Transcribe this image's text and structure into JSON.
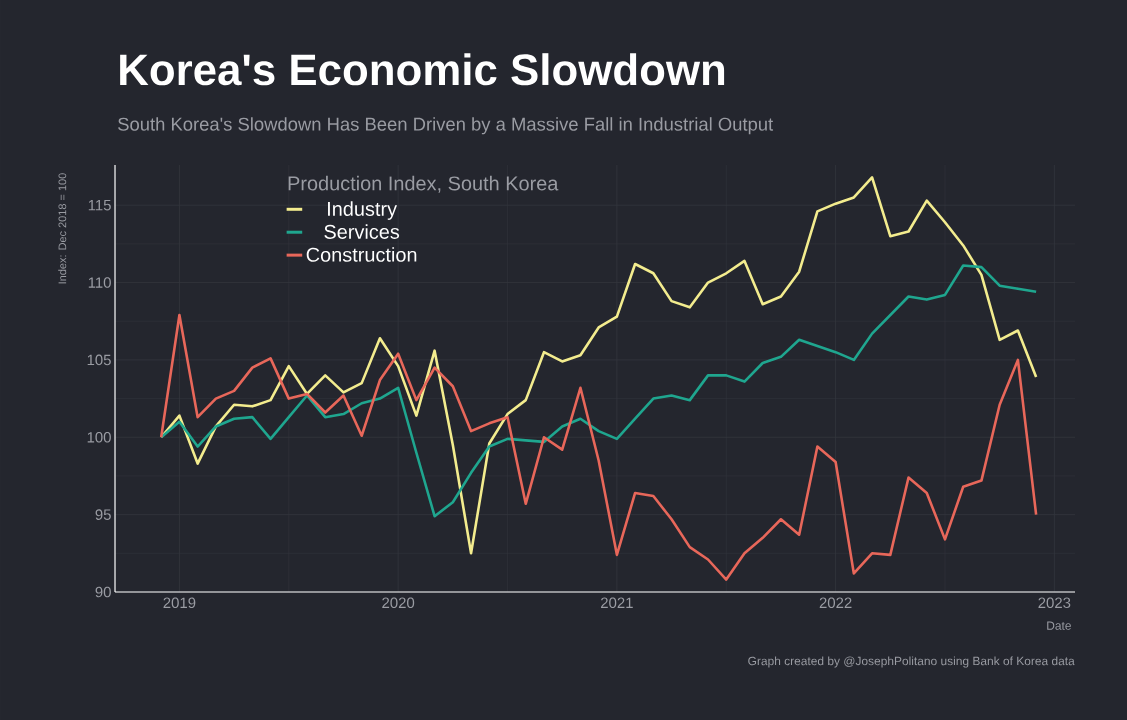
{
  "chart_data": {
    "type": "line",
    "title": "Korea's Economic Slowdown",
    "subtitle": "South Korea's Slowdown Has Been Driven by a Massive Fall in Industrial Output",
    "xlabel": "Date",
    "ylabel": "Index: Dec 2018 = 100",
    "legend_title": "Production Index, South Korea",
    "annotations": [
      "Graph created by @JosephPolitano using Bank of Korea data"
    ],
    "x": [
      "2018-12",
      "2019-01",
      "2019-02",
      "2019-03",
      "2019-04",
      "2019-05",
      "2019-06",
      "2019-07",
      "2019-08",
      "2019-09",
      "2019-10",
      "2019-11",
      "2019-12",
      "2020-01",
      "2020-02",
      "2020-03",
      "2020-04",
      "2020-05",
      "2020-06",
      "2020-07",
      "2020-08",
      "2020-09",
      "2020-10",
      "2020-11",
      "2020-12",
      "2021-01",
      "2021-02",
      "2021-03",
      "2021-04",
      "2021-05",
      "2021-06",
      "2021-07",
      "2021-08",
      "2021-09",
      "2021-10",
      "2021-11",
      "2021-12",
      "2022-01",
      "2022-02",
      "2022-03",
      "2022-04",
      "2022-05",
      "2022-06",
      "2022-07",
      "2022-08",
      "2022-09",
      "2022-10",
      "2022-11",
      "2022-12"
    ],
    "series": [
      {
        "name": "Industry",
        "color": "#f3ec8e",
        "values": [
          100.0,
          101.4,
          98.3,
          100.7,
          102.1,
          102.0,
          102.4,
          104.6,
          102.8,
          104.0,
          102.9,
          103.5,
          106.4,
          104.6,
          101.4,
          105.6,
          99.5,
          92.5,
          99.6,
          101.5,
          102.4,
          105.5,
          104.9,
          105.3,
          107.1,
          107.8,
          111.2,
          110.6,
          108.8,
          108.4,
          110.0,
          110.6,
          111.4,
          108.6,
          109.1,
          110.7,
          114.6,
          115.1,
          115.5,
          116.8,
          113.0,
          113.3,
          115.3,
          113.9,
          112.4,
          110.5,
          106.3,
          106.9,
          103.9
        ]
      },
      {
        "name": "Services",
        "color": "#1fa68f",
        "values": [
          100.0,
          101.0,
          99.4,
          100.7,
          101.2,
          101.3,
          99.9,
          101.3,
          102.7,
          101.3,
          101.5,
          102.2,
          102.5,
          103.2,
          99.0,
          94.9,
          95.8,
          97.7,
          99.4,
          99.9,
          99.8,
          99.7,
          100.7,
          101.2,
          100.4,
          99.9,
          101.2,
          102.5,
          102.7,
          102.4,
          104.0,
          104.0,
          103.6,
          104.8,
          105.2,
          106.3,
          105.9,
          105.5,
          105.0,
          106.7,
          107.9,
          109.1,
          108.9,
          109.2,
          111.1,
          111.0,
          109.8,
          109.6,
          109.4
        ]
      },
      {
        "name": "Construction",
        "color": "#e8675a",
        "values": [
          100.0,
          107.9,
          101.3,
          102.5,
          103.0,
          104.5,
          105.1,
          102.5,
          102.8,
          101.6,
          102.7,
          100.1,
          103.7,
          105.4,
          102.4,
          104.5,
          103.3,
          100.4,
          100.9,
          101.3,
          95.7,
          100.0,
          99.2,
          103.2,
          98.5,
          92.4,
          96.4,
          96.2,
          94.7,
          92.9,
          92.1,
          90.8,
          92.5,
          93.5,
          94.7,
          93.7,
          99.4,
          98.4,
          91.2,
          92.5,
          92.4,
          97.4,
          96.4,
          93.4,
          96.8,
          97.2,
          102.1,
          105.0,
          95.0
        ]
      }
    ],
    "xlim": [
      "2018-09-15",
      "2023-02-05"
    ],
    "xticks": [
      {
        "value": "2019-01",
        "label": "2019"
      },
      {
        "value": "2020-01",
        "label": "2020"
      },
      {
        "value": "2021-01",
        "label": "2021"
      },
      {
        "value": "2022-01",
        "label": "2022"
      },
      {
        "value": "2023-01",
        "label": "2023"
      }
    ],
    "ylim": [
      90,
      117.6
    ],
    "yticks": [
      90,
      95,
      100,
      105,
      110,
      115
    ],
    "grid": true,
    "legend": "top left"
  }
}
